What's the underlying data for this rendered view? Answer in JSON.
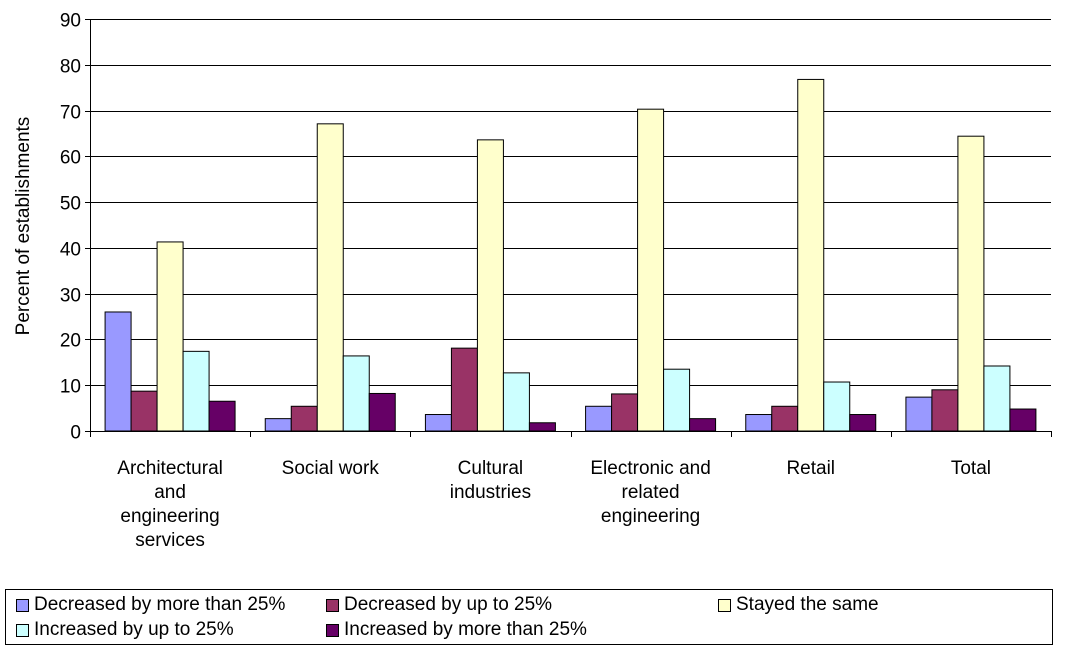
{
  "chart_data": {
    "type": "bar",
    "title": "",
    "xlabel": "",
    "ylabel": "Percent of establishments",
    "ylim": [
      0,
      90
    ],
    "yticks": [
      0,
      10,
      20,
      30,
      40,
      50,
      60,
      70,
      80,
      90
    ],
    "grid": true,
    "legend_position": "bottom",
    "categories": [
      [
        "Architectural",
        "and",
        "engineering",
        "services"
      ],
      [
        "Social work"
      ],
      [
        "Cultural",
        "industries"
      ],
      [
        "Electronic and",
        "related",
        "engineering"
      ],
      [
        "Retail"
      ],
      [
        "Total"
      ]
    ],
    "series": [
      {
        "name": "Decreased by more than 25%",
        "color": "#9999FF",
        "values": [
          26.0,
          2.7,
          3.6,
          5.4,
          3.6,
          7.4
        ]
      },
      {
        "name": "Decreased by up to 25%",
        "color": "#993366",
        "values": [
          8.7,
          5.4,
          18.1,
          8.1,
          5.4,
          9.0
        ]
      },
      {
        "name": "Stayed the same",
        "color": "#FFFFCC",
        "values": [
          41.3,
          67.1,
          63.6,
          70.3,
          76.8,
          64.4
        ]
      },
      {
        "name": "Increased by up to 25%",
        "color": "#CCFFFF",
        "values": [
          17.4,
          16.4,
          12.7,
          13.5,
          10.7,
          14.2
        ]
      },
      {
        "name": "Increased by more than 25%",
        "color": "#660066",
        "values": [
          6.5,
          8.2,
          1.8,
          2.7,
          3.6,
          4.8
        ]
      }
    ]
  }
}
